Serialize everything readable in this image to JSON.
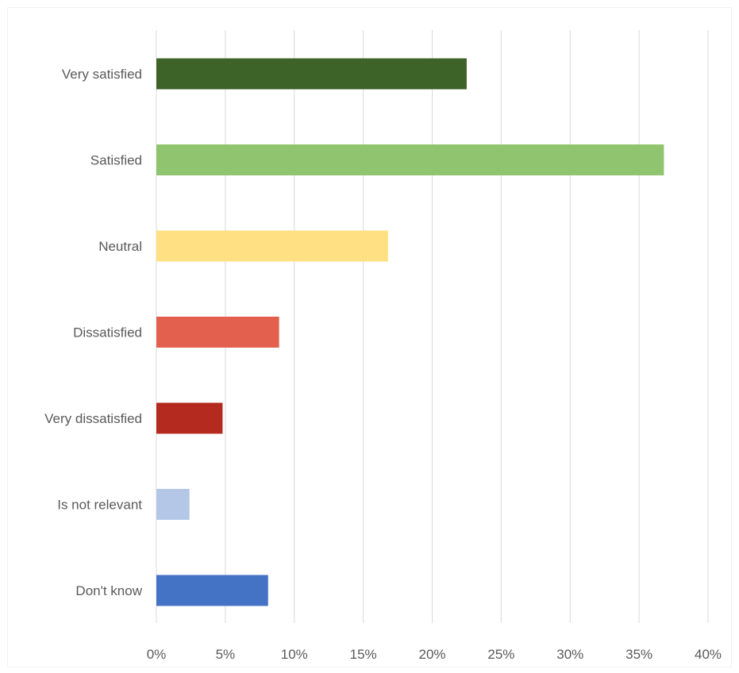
{
  "chart_data": {
    "type": "bar",
    "orientation": "horizontal",
    "categories": [
      "Very satisfied",
      "Satisfied",
      "Neutral",
      "Dissatisfied",
      "Very dissatisfied",
      "Is not relevant",
      "Don't know"
    ],
    "values": [
      22.5,
      36.8,
      16.8,
      8.9,
      4.8,
      2.4,
      8.1
    ],
    "colors": [
      "#3e6328",
      "#91c46f",
      "#ffe083",
      "#e35f4e",
      "#b52a1e",
      "#b4c7e7",
      "#4472c4"
    ],
    "xlim": [
      0,
      40
    ],
    "ticks": [
      "0%",
      "5%",
      "10%",
      "15%",
      "20%",
      "25%",
      "30%",
      "35%",
      "40%"
    ],
    "tick_values": [
      0,
      5,
      10,
      15,
      20,
      25,
      30,
      35,
      40
    ],
    "grid": true,
    "legend": "none",
    "title": "",
    "xlabel": "",
    "ylabel": ""
  }
}
